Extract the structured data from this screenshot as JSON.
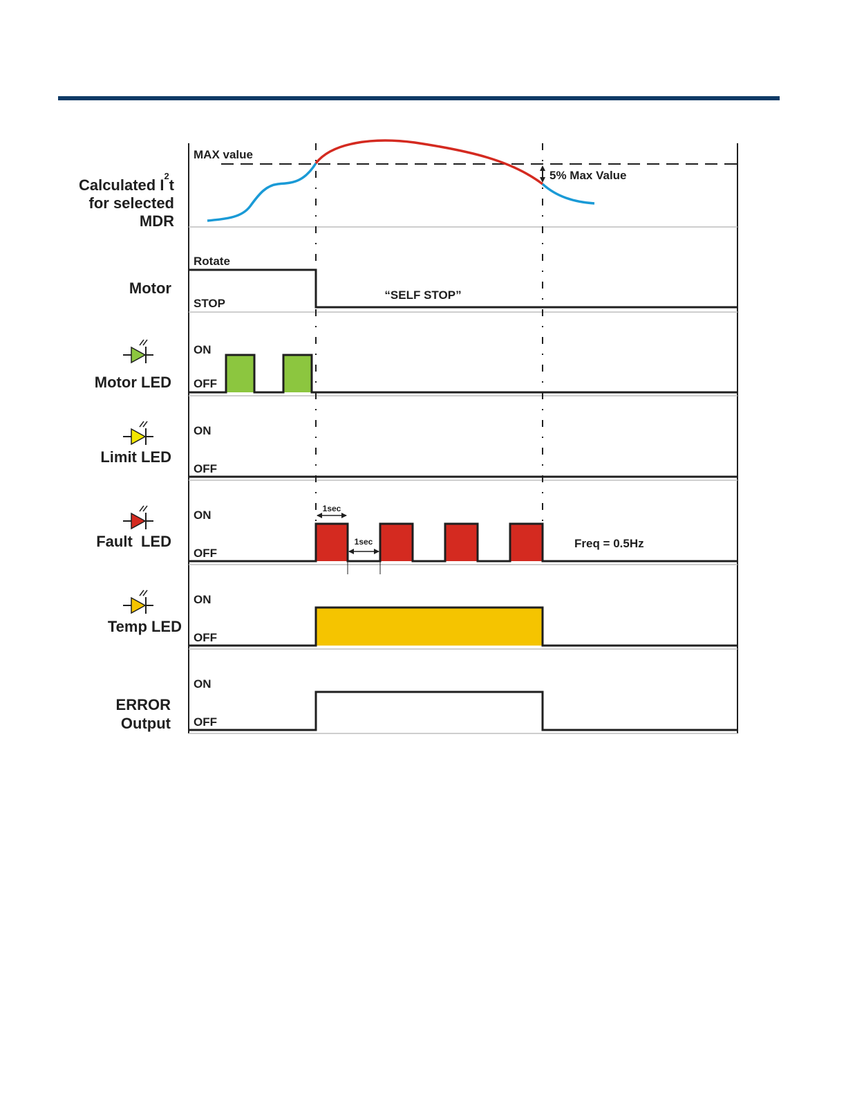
{
  "rows": {
    "i2t": {
      "label_line1": "Calculated I",
      "label_sup": "2",
      "label_t": "t",
      "label_line2": "for selected",
      "label_line3": "MDR",
      "max_label": "MAX value",
      "margin_label": "5% Max Value"
    },
    "motor": {
      "label": "Motor",
      "high": "Rotate",
      "low": "STOP",
      "note": "“SELF STOP”"
    },
    "motor_led": {
      "label": "Motor LED",
      "high": "ON",
      "low": "OFF"
    },
    "limit_led": {
      "label": "Limit LED",
      "high": "ON",
      "low": "OFF"
    },
    "fault_led": {
      "label": "Fault  LED",
      "high": "ON",
      "low": "OFF",
      "pulse_width": "1sec",
      "pulse_gap": "1sec",
      "freq": "Freq =  0.5Hz"
    },
    "temp_led": {
      "label": "Temp LED",
      "high": "ON",
      "low": "OFF"
    },
    "error_output": {
      "label_line1": "ERROR",
      "label_line2": "Output",
      "high": "ON",
      "low": "OFF"
    }
  },
  "colors": {
    "header_bar": "#0e3a66",
    "curve_rising": "#1a9ad6",
    "curve_over_limit": "#d42a20",
    "motor_led": "#8cc63f",
    "limit_led": "#f2e600",
    "fault_led": "#d42a20",
    "temp_led": "#f5c400",
    "trace": "#1f1f1f",
    "divider": "#bdbdbd"
  },
  "icons": {
    "motor_led": "led-diode-icon",
    "limit_led": "led-diode-icon",
    "fault_led": "led-diode-icon",
    "temp_led": "led-diode-icon"
  }
}
